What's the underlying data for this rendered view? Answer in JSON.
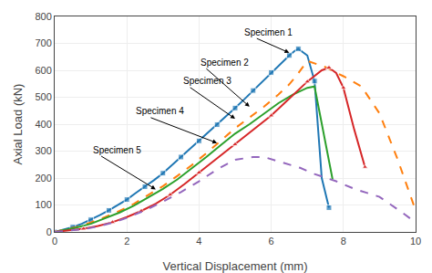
{
  "chart_data": {
    "type": "line",
    "xlabel": "Vertical Displacement (mm)",
    "ylabel": "Axial Load (kN)",
    "xlim": [
      0,
      10
    ],
    "ylim": [
      0,
      800
    ],
    "xticks": [
      0,
      2,
      4,
      6,
      8,
      10
    ],
    "yticks": [
      0,
      100,
      200,
      300,
      400,
      500,
      600,
      700,
      800
    ],
    "grid": true,
    "series": [
      {
        "line_style": "solid",
        "marker": "square",
        "x": [
          0,
          0.25,
          0.5,
          0.75,
          1.0,
          1.25,
          1.5,
          1.75,
          2.0,
          2.25,
          2.5,
          2.75,
          3.0,
          3.25,
          3.5,
          3.75,
          4.0,
          4.25,
          4.5,
          4.75,
          5.0,
          5.25,
          5.5,
          5.75,
          6.0,
          6.25,
          6.5,
          6.65,
          6.75,
          7.0,
          7.2,
          7.4,
          7.6
        ],
        "values": [
          0,
          8,
          18,
          30,
          45,
          62,
          80,
          100,
          120,
          145,
          168,
          192,
          218,
          248,
          278,
          308,
          338,
          368,
          398,
          430,
          460,
          492,
          525,
          558,
          592,
          625,
          655,
          672,
          680,
          655,
          560,
          200,
          90
        ]
      },
      {
        "line_style": "dashed",
        "x": [
          0,
          0.3,
          0.6,
          1.0,
          1.4,
          1.8,
          2.2,
          2.6,
          3.0,
          3.4,
          3.8,
          4.2,
          4.6,
          5.0,
          5.4,
          5.8,
          6.2,
          6.5,
          6.7,
          7.0,
          7.5,
          8.0,
          8.5,
          9.0,
          9.5,
          10.0
        ],
        "values": [
          0,
          8,
          18,
          35,
          55,
          78,
          105,
          138,
          170,
          208,
          248,
          292,
          338,
          385,
          425,
          465,
          510,
          548,
          580,
          635,
          612,
          578,
          540,
          440,
          270,
          80
        ]
      },
      {
        "line_style": "solid",
        "x": [
          0,
          0.3,
          0.6,
          1.0,
          1.4,
          1.8,
          2.2,
          2.6,
          3.0,
          3.4,
          3.8,
          4.2,
          4.6,
          5.0,
          5.4,
          5.8,
          6.2,
          6.6,
          7.0,
          7.2,
          7.5,
          7.7
        ],
        "values": [
          0,
          7,
          16,
          30,
          50,
          72,
          98,
          128,
          160,
          195,
          235,
          278,
          322,
          365,
          400,
          438,
          478,
          510,
          535,
          540,
          340,
          195
        ]
      },
      {
        "line_style": "solid",
        "marker": "triangle-up",
        "x": [
          0,
          0.4,
          0.8,
          1.2,
          1.6,
          2.0,
          2.4,
          2.8,
          3.2,
          3.6,
          4.0,
          4.5,
          5.0,
          5.5,
          6.0,
          6.5,
          7.0,
          7.4,
          7.6,
          7.8,
          8.0,
          8.3,
          8.6
        ],
        "values": [
          0,
          5,
          12,
          22,
          36,
          55,
          78,
          105,
          138,
          178,
          220,
          272,
          325,
          378,
          432,
          495,
          558,
          600,
          610,
          590,
          535,
          380,
          240
        ]
      },
      {
        "line_style": "dashed",
        "x": [
          0,
          0.4,
          0.8,
          1.2,
          1.6,
          2.0,
          2.5,
          3.0,
          3.5,
          4.0,
          4.5,
          5.0,
          5.5,
          5.8,
          6.2,
          6.8,
          7.2,
          7.8,
          8.3,
          9.0,
          9.6,
          10.0
        ],
        "values": [
          0,
          4,
          10,
          20,
          34,
          52,
          80,
          112,
          148,
          188,
          232,
          268,
          278,
          278,
          262,
          238,
          215,
          188,
          160,
          130,
          75,
          35
        ]
      }
    ],
    "annotations": [
      {
        "text": "Specimen 1",
        "xy": [
          6.5,
          665
        ],
        "xytext": [
          5.2,
          742
        ]
      },
      {
        "text": "Specimen 2",
        "xy": [
          5.4,
          465
        ],
        "xytext": [
          4.0,
          630
        ]
      },
      {
        "text": "Specimen 3",
        "xy": [
          5.0,
          420
        ],
        "xytext": [
          3.5,
          560
        ]
      },
      {
        "text": "Specimen 4",
        "xy": [
          4.5,
          330
        ],
        "xytext": [
          2.2,
          448
        ]
      },
      {
        "text": "Specimen 5",
        "xy": [
          2.8,
          158
        ],
        "xytext": [
          1.0,
          305
        ]
      }
    ]
  }
}
